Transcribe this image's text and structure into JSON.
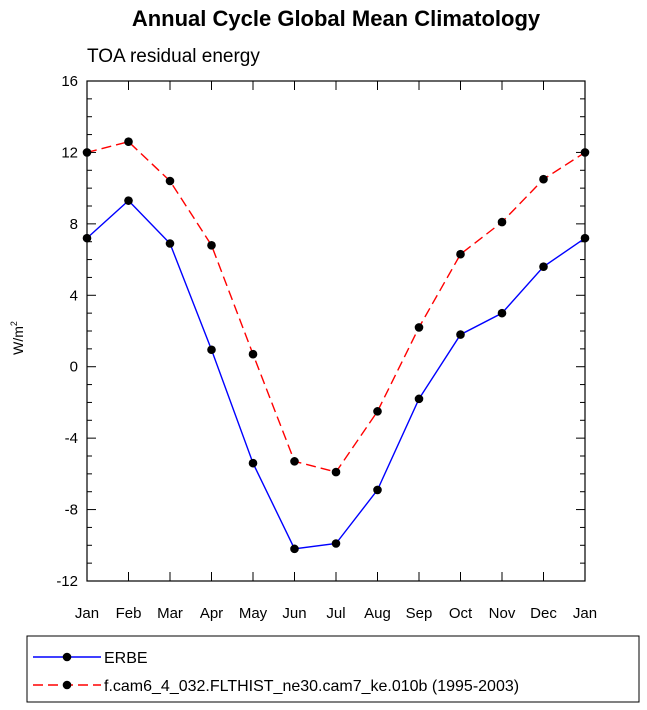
{
  "chart_data": {
    "type": "line",
    "title": "Annual Cycle Global Mean Climatology",
    "subtitle": "TOA residual energy",
    "xlabel": "",
    "ylabel": "W/m",
    "ylabel_superscript": "2",
    "categories": [
      "Jan",
      "Feb",
      "Mar",
      "Apr",
      "May",
      "Jun",
      "Jul",
      "Aug",
      "Sep",
      "Oct",
      "Nov",
      "Dec",
      "Jan"
    ],
    "ylim": [
      -12,
      16
    ],
    "yticks": [
      -12,
      -8,
      -4,
      0,
      4,
      8,
      12,
      16
    ],
    "ytick_labels": [
      "-12",
      "-8",
      "-4",
      "0",
      "4",
      "8",
      "12",
      "16"
    ],
    "grid": false,
    "legend_position": "bottom",
    "series": [
      {
        "name": "ERBE",
        "color": "#0000ff",
        "line_style": "solid",
        "marker": "filled-circle",
        "values": [
          7.2,
          9.3,
          6.9,
          0.95,
          -5.4,
          -10.2,
          -9.9,
          -6.9,
          -1.8,
          1.8,
          3.0,
          5.6,
          7.2
        ]
      },
      {
        "name": "f.cam6_4_032.FLTHIST_ne30.cam7_ke.010b (1995-2003)",
        "color": "#ff0000",
        "line_style": "dashed",
        "marker": "filled-circle",
        "values": [
          12.0,
          12.6,
          10.4,
          6.8,
          0.7,
          -5.3,
          -5.9,
          -2.5,
          2.2,
          6.3,
          8.1,
          10.5,
          12.0
        ]
      }
    ]
  }
}
